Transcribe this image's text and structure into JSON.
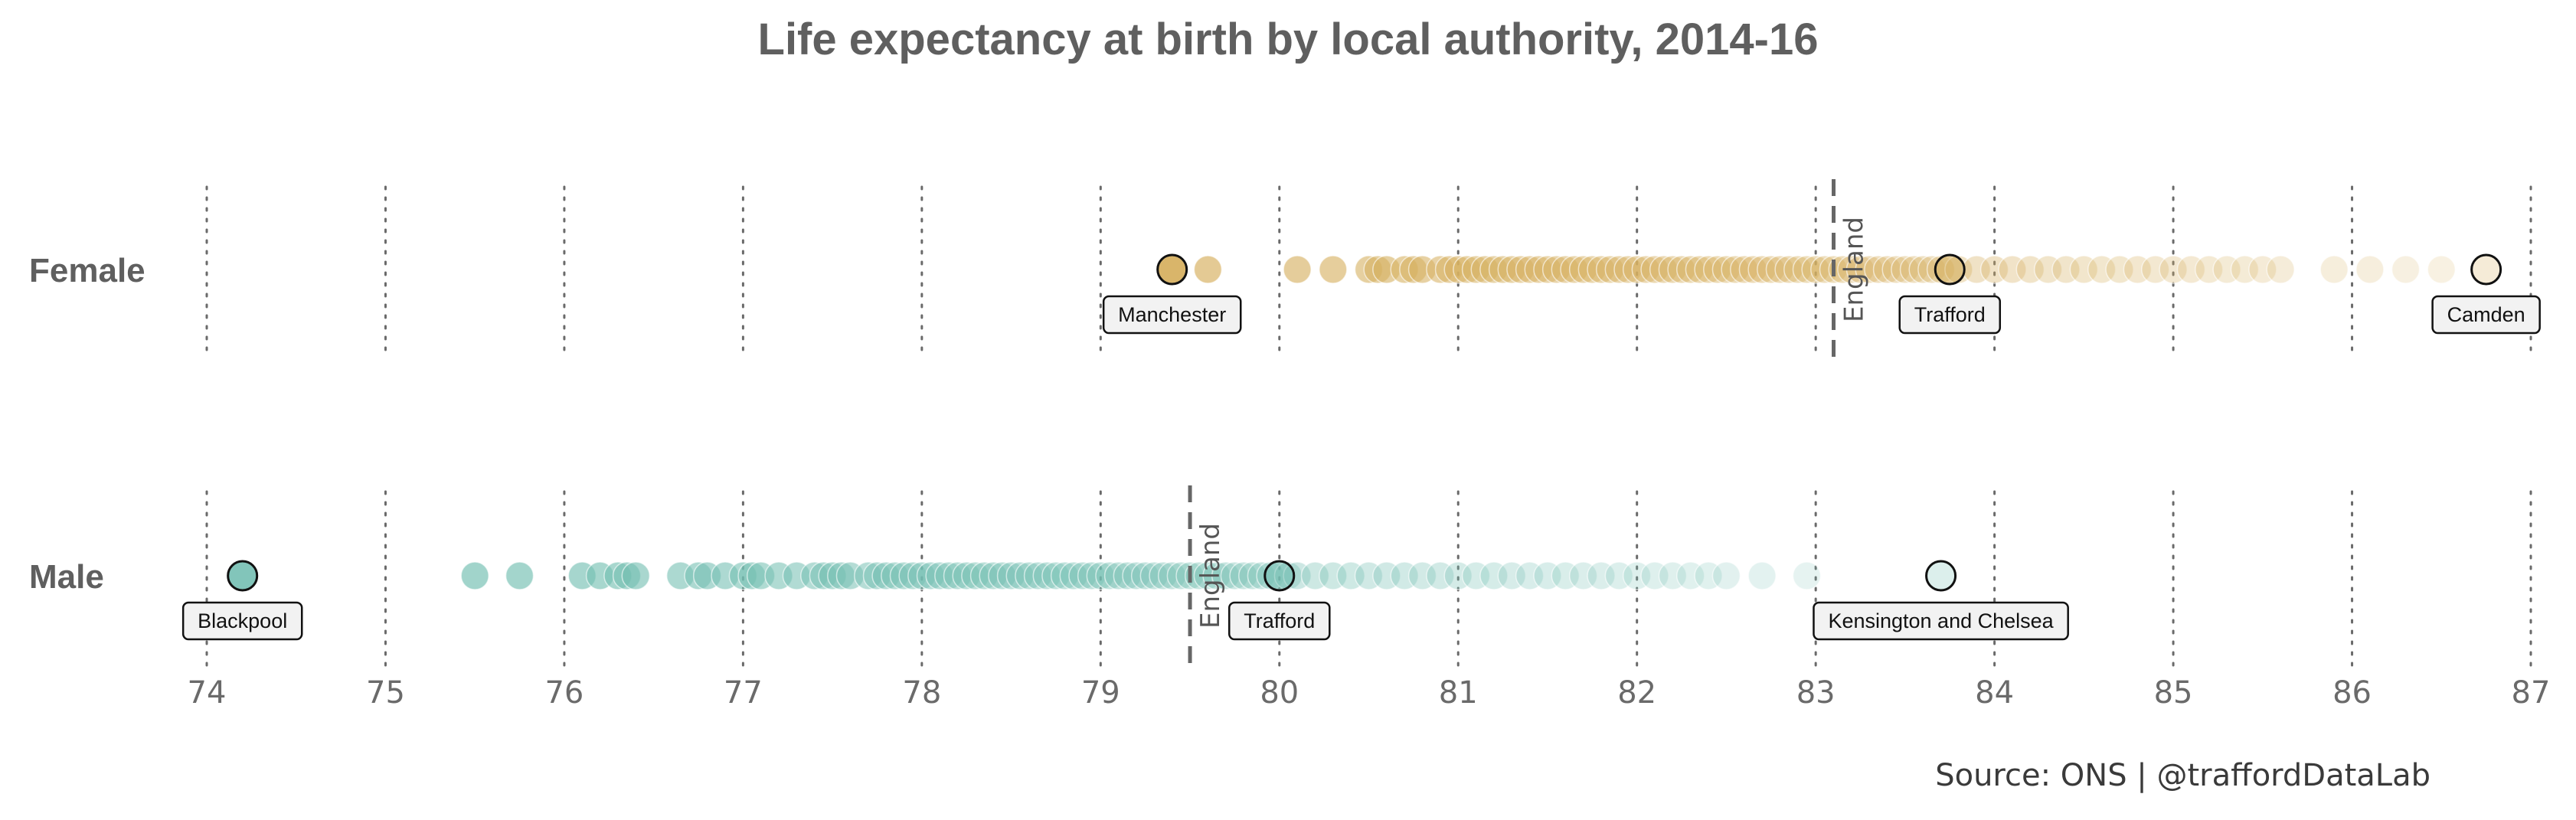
{
  "chart_data": {
    "type": "scatter",
    "title": "Life expectancy at birth by local authority, 2014-16",
    "source": "Source: ONS  |  @traffordDataLab",
    "xlim": [
      74,
      87
    ],
    "ticks": [
      74,
      75,
      76,
      77,
      78,
      79,
      80,
      81,
      82,
      83,
      84,
      85,
      86,
      87
    ],
    "grid": "vertical dotted",
    "series": [
      {
        "name": "Female",
        "color": "#d6b060",
        "reference": {
          "label": "England",
          "value": 83.1
        },
        "values": [
          79.4,
          79.6,
          80.1,
          80.3,
          80.5,
          80.55,
          80.6,
          80.7,
          80.75,
          80.8,
          80.9,
          80.95,
          81.0,
          81.05,
          81.1,
          81.15,
          81.2,
          81.25,
          81.3,
          81.35,
          81.4,
          81.45,
          81.5,
          81.55,
          81.6,
          81.65,
          81.7,
          81.75,
          81.8,
          81.85,
          81.9,
          81.95,
          82.0,
          82.05,
          82.1,
          82.15,
          82.2,
          82.25,
          82.3,
          82.35,
          82.4,
          82.45,
          82.5,
          82.55,
          82.6,
          82.65,
          82.7,
          82.75,
          82.8,
          82.85,
          82.9,
          82.95,
          83.0,
          83.05,
          83.1,
          83.15,
          83.2,
          83.25,
          83.3,
          83.35,
          83.4,
          83.45,
          83.5,
          83.55,
          83.6,
          83.65,
          83.7,
          83.75,
          83.8,
          83.9,
          84.0,
          84.1,
          84.2,
          84.3,
          84.4,
          84.5,
          84.6,
          84.7,
          84.8,
          84.9,
          85.0,
          85.1,
          85.2,
          85.3,
          85.4,
          85.5,
          85.6,
          85.9,
          86.1,
          86.3,
          86.5
        ],
        "highlights": [
          {
            "label": "Manchester",
            "value": 79.4
          },
          {
            "label": "Trafford",
            "value": 83.75
          },
          {
            "label": "Camden",
            "value": 86.75
          }
        ]
      },
      {
        "name": "Male",
        "color": "#74bfb2",
        "reference": {
          "label": "England",
          "value": 79.5
        },
        "values": [
          75.5,
          75.75,
          76.1,
          76.2,
          76.3,
          76.35,
          76.4,
          76.65,
          76.75,
          76.8,
          76.9,
          77.0,
          77.05,
          77.1,
          77.2,
          77.3,
          77.4,
          77.45,
          77.5,
          77.55,
          77.6,
          77.7,
          77.75,
          77.8,
          77.85,
          77.9,
          77.95,
          78.0,
          78.05,
          78.1,
          78.15,
          78.2,
          78.25,
          78.3,
          78.35,
          78.4,
          78.45,
          78.5,
          78.55,
          78.6,
          78.65,
          78.7,
          78.75,
          78.8,
          78.85,
          78.9,
          78.95,
          79.0,
          79.05,
          79.1,
          79.15,
          79.2,
          79.25,
          79.3,
          79.35,
          79.4,
          79.45,
          79.5,
          79.55,
          79.6,
          79.65,
          79.7,
          79.75,
          79.8,
          79.85,
          79.9,
          79.95,
          80.0,
          80.05,
          80.1,
          80.2,
          80.3,
          80.4,
          80.5,
          80.6,
          80.7,
          80.8,
          80.9,
          81.0,
          81.1,
          81.2,
          81.3,
          81.4,
          81.5,
          81.6,
          81.7,
          81.8,
          81.9,
          82.0,
          82.1,
          82.2,
          82.3,
          82.4,
          82.5,
          82.7,
          82.95
        ],
        "highlights": [
          {
            "label": "Blackpool",
            "value": 74.2
          },
          {
            "label": "Trafford",
            "value": 80.0
          },
          {
            "label": "Kensington and Chelsea",
            "value": 83.7
          }
        ]
      }
    ]
  }
}
